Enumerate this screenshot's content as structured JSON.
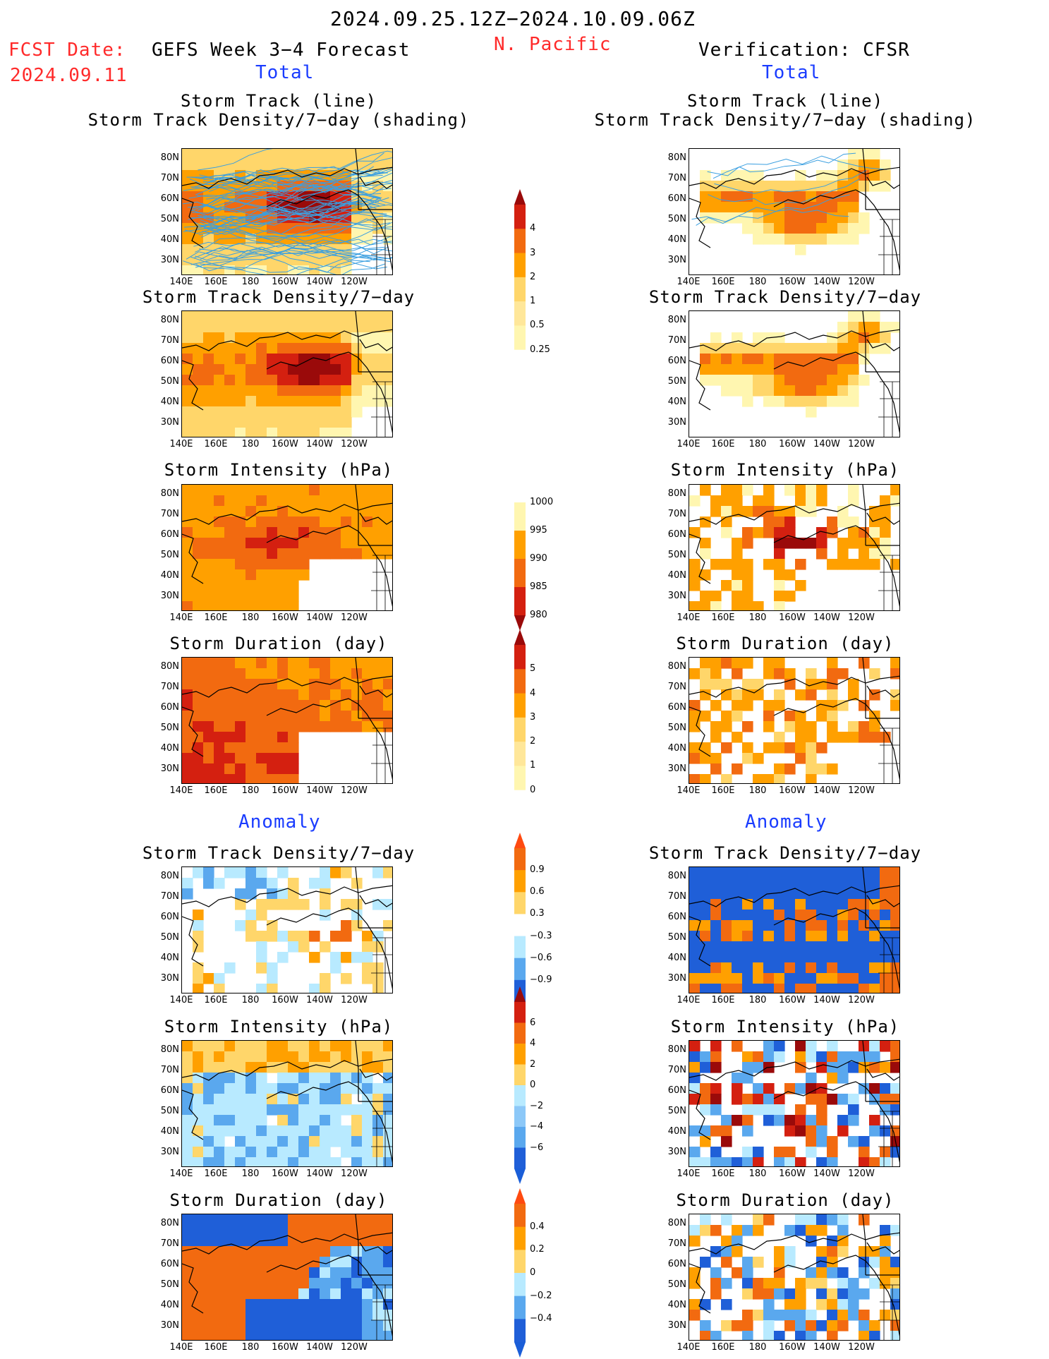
{
  "header": {
    "period": "2024.09.25.12Z−2024.10.09.06Z",
    "fcst_label": "FCST Date:",
    "fcst_date": "2024.09.11",
    "model": "GEFS Week 3−4 Forecast",
    "region": "N. Pacific",
    "verification": "Verification: CFSR"
  },
  "sections": {
    "total_left": "Total",
    "total_right": "Total",
    "anomaly_left": "Anomaly",
    "anomaly_right": "Anomaly"
  },
  "panel_titles": {
    "track_line": "Storm Track (line)",
    "track_shading": "Storm Track Density/7−day (shading)",
    "density": "Storm Track Density/7−day",
    "intensity": "Storm Intensity (hPa)",
    "duration": "Storm Duration (day)"
  },
  "axes": {
    "lat_ticks": [
      "80N",
      "70N",
      "60N",
      "50N",
      "40N",
      "30N"
    ],
    "lon_ticks": [
      "140E",
      "160E",
      "180",
      "160W",
      "140W",
      "120W"
    ]
  },
  "colorbars": {
    "density_total": [
      "4",
      "3",
      "2",
      "1",
      "0.5",
      "0.25"
    ],
    "intensity_total": [
      "1000",
      "995",
      "990",
      "985",
      "980"
    ],
    "duration_total": [
      "5",
      "4",
      "3",
      "2",
      "1",
      "0"
    ],
    "density_anom": [
      "0.9",
      "0.6",
      "0.3",
      "−0.3",
      "−0.6",
      "−0.9"
    ],
    "intensity_anom": [
      "6",
      "4",
      "2",
      "0",
      "−2",
      "−4",
      "−6"
    ],
    "duration_anom": [
      "0.4",
      "0.2",
      "0",
      "−0.2",
      "−0.4"
    ]
  },
  "colors": {
    "light_yellow": "#fff6b0",
    "yellow": "#ffd66a",
    "orange": "#ffa000",
    "dark_orange": "#f26a10",
    "red": "#d42010",
    "dark_red": "#9a0a0a",
    "light_blue": "#b8eaff",
    "mid_blue": "#5aa8ee",
    "blue": "#1f5fd8",
    "track_line": "#3a9fe0"
  }
}
